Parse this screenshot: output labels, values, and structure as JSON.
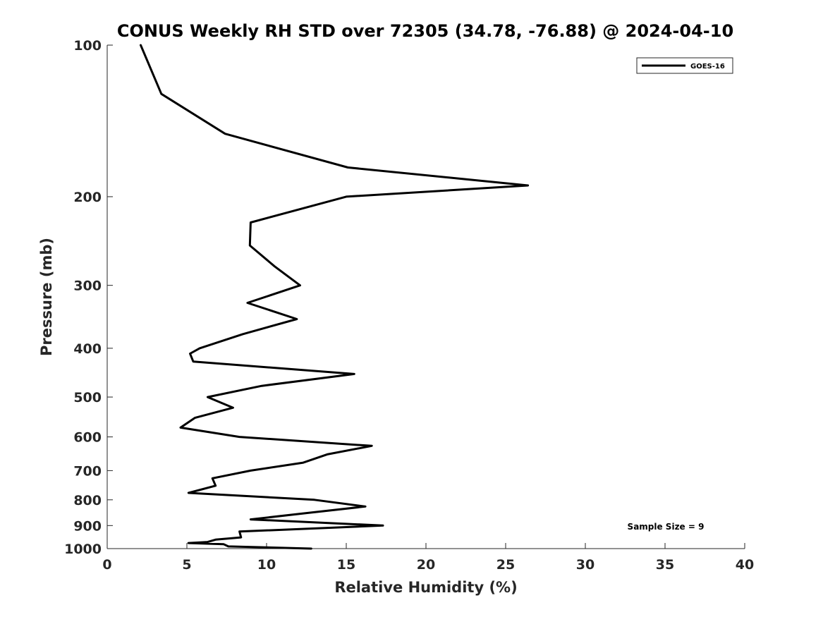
{
  "chart_data": {
    "type": "line",
    "title": "CONUS Weekly RH STD over 72305 (34.78, -76.88) @ 2024-04-10",
    "xlabel": "Relative Humidity (%)",
    "ylabel": "Pressure (mb)",
    "xlim": [
      0,
      40
    ],
    "ylim": [
      100,
      1000
    ],
    "y_scale": "log",
    "y_direction": "reversed",
    "x_ticks": [
      0,
      5,
      10,
      15,
      20,
      25,
      30,
      35,
      40
    ],
    "y_ticks": [
      100,
      200,
      300,
      400,
      500,
      600,
      700,
      800,
      900,
      1000
    ],
    "grid": false,
    "legend_position": "top-right",
    "series": [
      {
        "name": "GOES-16",
        "color": "#000000",
        "x": [
          2.1,
          3.4,
          7.4,
          15.1,
          26.4,
          15.0,
          9.0,
          8.95,
          10.5,
          12.1,
          8.8,
          11.9,
          8.5,
          5.8,
          5.2,
          5.4,
          15.5,
          9.7,
          6.3,
          7.9,
          5.5,
          4.6,
          8.3,
          16.6,
          13.8,
          12.3,
          9.0,
          6.6,
          6.8,
          5.1,
          13.0,
          16.2,
          12.5,
          9.0,
          17.3,
          8.3,
          8.4,
          6.8,
          6.3,
          5.1,
          7.3,
          7.6,
          12.8
        ],
        "y": [
          100,
          125,
          150,
          175,
          190,
          200,
          225,
          250,
          275,
          300,
          325,
          350,
          375,
          400,
          410,
          425,
          450,
          475,
          500,
          525,
          550,
          575,
          600,
          625,
          650,
          675,
          700,
          725,
          750,
          775,
          800,
          825,
          850,
          875,
          900,
          925,
          950,
          960,
          970,
          975,
          980,
          990,
          1000
        ]
      }
    ],
    "annotation": "Sample Size = 9"
  }
}
